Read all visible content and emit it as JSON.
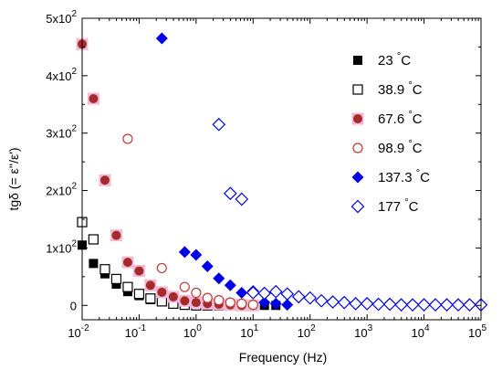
{
  "chart_data": {
    "type": "scatter",
    "xlabel": "Frequency (Hz)",
    "ylabel": "tgδ (= ε''/ε')",
    "x_scale": "log",
    "xlim": [
      0.01,
      100000
    ],
    "ylim": [
      -25,
      500
    ],
    "x_ticks": [
      {
        "value": 0.01,
        "base": "10",
        "exp": "-2"
      },
      {
        "value": 0.1,
        "base": "10",
        "exp": "-1"
      },
      {
        "value": 1,
        "base": "10",
        "exp": "0"
      },
      {
        "value": 10,
        "base": "10",
        "exp": "1"
      },
      {
        "value": 100,
        "base": "10",
        "exp": "2"
      },
      {
        "value": 1000,
        "base": "10",
        "exp": "3"
      },
      {
        "value": 10000,
        "base": "10",
        "exp": "4"
      },
      {
        "value": 100000,
        "base": "10",
        "exp": "5"
      }
    ],
    "y_ticks": [
      {
        "value": 0,
        "mant": "0",
        "exp": ""
      },
      {
        "value": 100,
        "mant": "1x10",
        "exp": "2"
      },
      {
        "value": 200,
        "mant": "2x10",
        "exp": "2"
      },
      {
        "value": 300,
        "mant": "3x10",
        "exp": "2"
      },
      {
        "value": 400,
        "mant": "4x10",
        "exp": "2"
      },
      {
        "value": 500,
        "mant": "5x10",
        "exp": "2"
      }
    ],
    "legend_position": "right",
    "series": [
      {
        "name": "23 °C",
        "marker": "square-filled",
        "color": "#000000",
        "x": [
          0.01,
          0.0158,
          0.0251,
          0.0398,
          0.0631,
          0.1,
          0.158,
          0.251,
          0.398,
          0.631,
          1.0,
          1.58,
          2.51,
          3.98,
          6.31,
          10,
          15.8,
          25.1
        ],
        "y": [
          105,
          73,
          55,
          37,
          24,
          17,
          10,
          7,
          4,
          2,
          1,
          0,
          0,
          0,
          0,
          0,
          0,
          0
        ]
      },
      {
        "name": "38.9 °C",
        "marker": "square-open",
        "color": "#000000",
        "x": [
          0.01,
          0.0158,
          0.0251,
          0.0398,
          0.0631,
          0.1,
          0.158,
          0.251,
          0.398,
          0.631,
          1.0,
          1.58,
          2.51,
          3.98,
          6.31,
          10
        ],
        "y": [
          145,
          115,
          63,
          46,
          32,
          20,
          12,
          7,
          3,
          1,
          0,
          0,
          0,
          0,
          0,
          0
        ]
      },
      {
        "name": "67.6 °C",
        "marker": "circle-filled-halo",
        "color": "#a52a2a",
        "halo": "#f2b8d8",
        "x": [
          0.01,
          0.0158,
          0.0251,
          0.0398,
          0.0631,
          0.1,
          0.158,
          0.251,
          0.398,
          0.631,
          1.0,
          1.58,
          2.51,
          3.98,
          6.31,
          10
        ],
        "y": [
          455,
          360,
          218,
          122,
          75,
          60,
          35,
          23,
          15,
          8,
          5,
          3,
          2,
          1,
          0,
          0
        ]
      },
      {
        "name": "98.9 °C",
        "marker": "circle-open",
        "color": "#c0392b",
        "x": [
          0.063,
          0.25,
          0.63,
          1.0,
          1.58,
          2.51,
          3.98,
          6.31,
          10
        ],
        "y": [
          290,
          65,
          32,
          22,
          13,
          9,
          5,
          3,
          1
        ]
      },
      {
        "name": "137.3 °C",
        "marker": "diamond-filled",
        "color": "#0000e6",
        "x": [
          0.251,
          0.631,
          1.0,
          1.58,
          2.51,
          3.98,
          6.31,
          10,
          15.8,
          25.1,
          39.8
        ],
        "y": [
          465,
          93,
          88,
          68,
          47,
          35,
          22,
          25,
          5,
          3,
          1
        ]
      },
      {
        "name": "177 °C",
        "marker": "diamond-open",
        "color": "#0000e6",
        "x": [
          2.51,
          3.98,
          6.31,
          10,
          15.8,
          25.1,
          39.8,
          63.1,
          100,
          158,
          251,
          398,
          631,
          1000,
          1585,
          2512,
          3981,
          6310,
          10000,
          15849,
          25119,
          39811,
          63096,
          100000
        ],
        "y": [
          315,
          195,
          185,
          22,
          21,
          24,
          20,
          15,
          13,
          8,
          6,
          5,
          3,
          3,
          2,
          2,
          1,
          1,
          1,
          1,
          1,
          1,
          1,
          1
        ]
      }
    ]
  }
}
